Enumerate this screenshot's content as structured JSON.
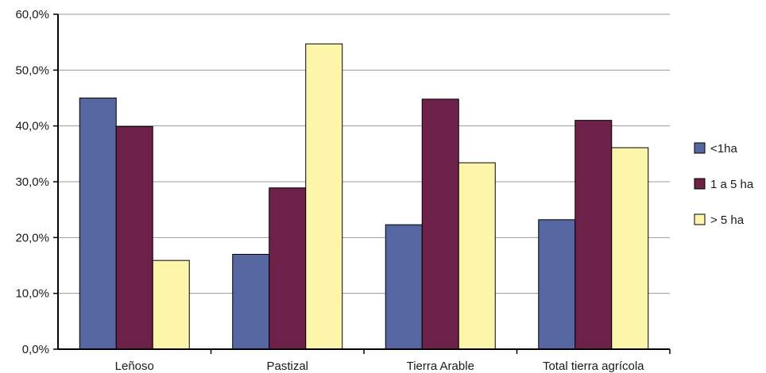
{
  "chart_data": {
    "type": "bar",
    "categories": [
      "Leñoso",
      "Pastizal",
      "Tierra Arable",
      "Total tierra agrícola"
    ],
    "series": [
      {
        "name": "<1ha",
        "values": [
          45.0,
          17.0,
          22.3,
          23.2
        ],
        "color": "#5566a0"
      },
      {
        "name": "1 a 5 ha",
        "values": [
          39.9,
          28.9,
          44.8,
          41.0
        ],
        "color": "#6e2148"
      },
      {
        "name": "> 5 ha",
        "values": [
          15.9,
          54.7,
          33.4,
          36.1
        ],
        "color": "#fdf6aa"
      }
    ],
    "ylim": [
      0,
      60
    ],
    "yticks": [
      "0,0%",
      "10,0%",
      "20,0%",
      "30,0%",
      "40,0%",
      "50,0%",
      "60,0%"
    ],
    "grid": true,
    "legend_position": "right"
  }
}
